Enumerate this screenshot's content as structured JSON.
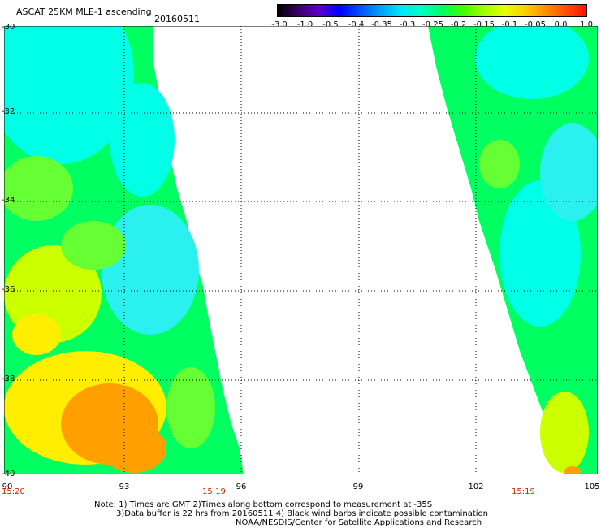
{
  "title": "ASCAT 25KM MLE-1 ascending",
  "date": "20160511",
  "colorbar": {
    "labels": [
      "-3.0",
      "-1.0",
      "-0.5",
      "-0.4",
      "-0.35",
      "-0.3",
      "-0.25",
      "-0.2",
      "-0.15",
      "-0.1",
      "-0.05",
      "0.0",
      "1.0"
    ],
    "colors": [
      "#000000",
      "#3a006a",
      "#5a00c8",
      "#0000ff",
      "#0050ff",
      "#00a0ff",
      "#00e6ff",
      "#00ffc0",
      "#00ff60",
      "#40ff00",
      "#a0ff00",
      "#e6ff00",
      "#ffd000",
      "#ff9000",
      "#ff5000",
      "#ff1000"
    ]
  },
  "axes": {
    "lat_labels": [
      "-30",
      "-32",
      "-34",
      "-36",
      "-38",
      "-40"
    ],
    "lon_labels": [
      "90",
      "93",
      "96",
      "99",
      "102",
      "105"
    ]
  },
  "times": {
    "left_start": "15:20",
    "left_end": "15:19",
    "right_end": "15:19"
  },
  "notes": [
    "Note: 1) Times are GMT 2)Times along bottom correspond to measurement at -35S",
    "3)Data buffer is 22 hrs from 20160511 4) Black wind barbs indicate possible contamination",
    "NOAA/NESDIS/Center for Satellite Applications and Research"
  ],
  "swath_colors": {
    "cyan": "#00ffe6",
    "light_cyan": "#2af0f0",
    "green": "#00ff60",
    "light_green": "#66ff33",
    "yellow_green": "#ccff00",
    "yellow": "#ffee00",
    "orange": "#ffa000"
  }
}
